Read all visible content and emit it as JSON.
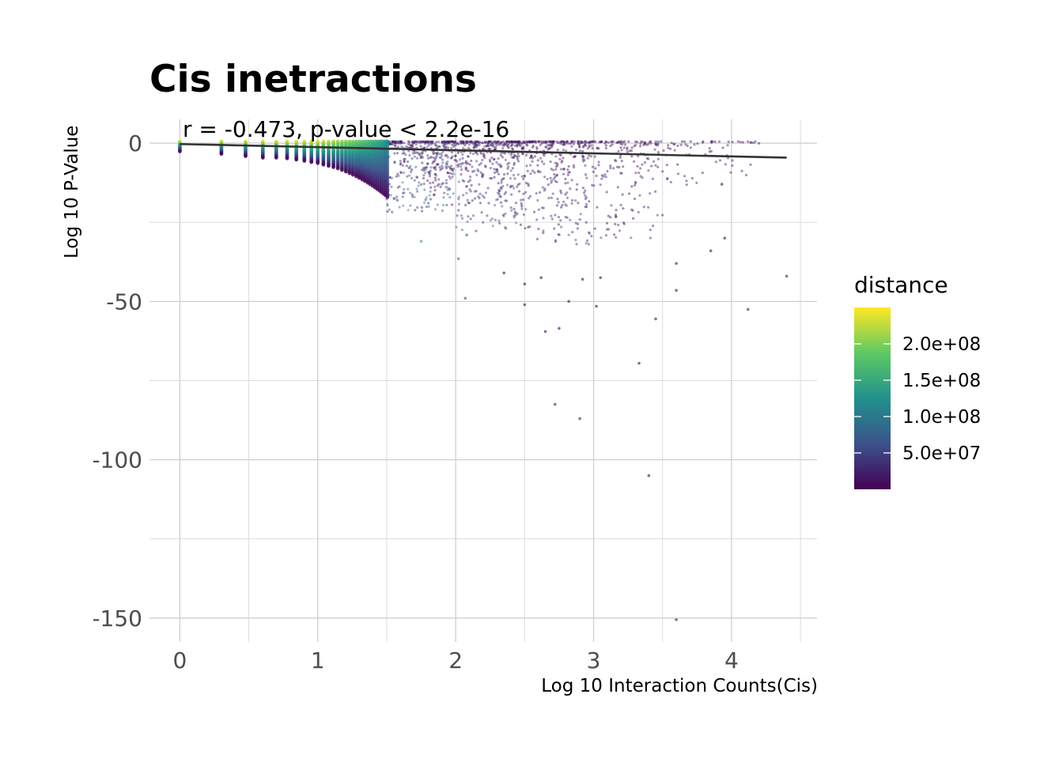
{
  "chart_data": {
    "type": "scatter",
    "title": "Cis inetractions",
    "annotation": "r = -0.473, p-value < 2.2e-16",
    "xlabel": "Log 10 Interaction Counts(Cis)",
    "ylabel": "Log 10 P-Value",
    "xlim": [
      -0.22,
      4.62
    ],
    "ylim": [
      -157.5,
      7.5
    ],
    "x_ticks": [
      0,
      1,
      2,
      3,
      4
    ],
    "x_tick_labels": [
      "0",
      "1",
      "2",
      "3",
      "4"
    ],
    "x_minor_ticks": [
      0.5,
      1.5,
      2.5,
      3.5,
      4.5
    ],
    "y_ticks": [
      0,
      -50,
      -100,
      -150
    ],
    "y_tick_labels": [
      "0",
      "-50",
      "-100",
      "-150"
    ],
    "y_minor_ticks": [
      -25,
      -75,
      -125
    ],
    "grid": true,
    "legend": {
      "title": "distance",
      "placement": "right",
      "range": [
        0,
        250000000
      ],
      "ticks": [
        50000000,
        100000000,
        150000000,
        200000000
      ],
      "tick_labels": [
        "5.0e+07",
        "1.0e+08",
        "1.5e+08",
        "2.0e+08"
      ],
      "colormap": [
        "#440154",
        "#3b528b",
        "#21918c",
        "#5ec962",
        "#fde725"
      ]
    },
    "fit_line": {
      "x": [
        0,
        4.4
      ],
      "y": [
        -0.3,
        -4.6
      ],
      "color": "#333333"
    },
    "outlier_points": [
      {
        "x": 3.6,
        "y": -150.5,
        "d": 5000000
      },
      {
        "x": 3.4,
        "y": -105,
        "d": 5000000
      },
      {
        "x": 2.9,
        "y": -87,
        "d": 5000000
      },
      {
        "x": 2.72,
        "y": -82.5,
        "d": 5000000
      },
      {
        "x": 3.33,
        "y": -69.5,
        "d": 5000000
      },
      {
        "x": 2.65,
        "y": -59.5,
        "d": 5000000
      },
      {
        "x": 2.75,
        "y": -58.5,
        "d": 5000000
      },
      {
        "x": 3.45,
        "y": -55.5,
        "d": 5000000
      },
      {
        "x": 4.12,
        "y": -52.5,
        "d": 5000000
      },
      {
        "x": 2.5,
        "y": -51,
        "d": 5000000
      },
      {
        "x": 3.02,
        "y": -51.5,
        "d": 5000000
      },
      {
        "x": 2.82,
        "y": -50,
        "d": 5000000
      },
      {
        "x": 2.07,
        "y": -49,
        "d": 60000000
      },
      {
        "x": 3.6,
        "y": -46.5,
        "d": 5000000
      },
      {
        "x": 2.5,
        "y": -44.5,
        "d": 5000000
      },
      {
        "x": 2.92,
        "y": -43,
        "d": 5000000
      },
      {
        "x": 4.4,
        "y": -42,
        "d": 5000000
      },
      {
        "x": 2.62,
        "y": -42.5,
        "d": 5000000
      },
      {
        "x": 3.05,
        "y": -42.5,
        "d": 5000000
      },
      {
        "x": 2.35,
        "y": -41,
        "d": 5000000
      },
      {
        "x": 3.6,
        "y": -38,
        "d": 5000000
      },
      {
        "x": 2.02,
        "y": -36.5,
        "d": 110000000
      },
      {
        "x": 3.85,
        "y": -34,
        "d": 5000000
      },
      {
        "x": 3.95,
        "y": -30,
        "d": 5000000
      },
      {
        "x": 1.75,
        "y": -31,
        "d": 140000000
      },
      {
        "x": 2.08,
        "y": -29,
        "d": 90000000
      },
      {
        "x": 3.93,
        "y": -13,
        "d": 5000000
      }
    ],
    "point_groups": [
      {
        "x": 0.0,
        "n": 10,
        "ymin": -2.6,
        "ymax": 0.5,
        "dmin": 5000000,
        "dmax": 240000000
      },
      {
        "x": 0.301,
        "n": 14,
        "ymin": -3.4,
        "ymax": 0.5,
        "dmin": 5000000,
        "dmax": 240000000
      },
      {
        "x": 0.477,
        "n": 16,
        "ymin": -4.1,
        "ymax": 0.5,
        "dmin": 5000000,
        "dmax": 240000000
      },
      {
        "x": 0.602,
        "n": 16,
        "ymin": -4.6,
        "ymax": 0.5,
        "dmin": 5000000,
        "dmax": 240000000
      },
      {
        "x": 0.699,
        "n": 16,
        "ymin": -4.6,
        "ymax": 0.5,
        "dmin": 5000000,
        "dmax": 240000000
      },
      {
        "x": 0.778,
        "n": 16,
        "ymin": -4.8,
        "ymax": 0.5,
        "dmin": 5000000,
        "dmax": 240000000
      },
      {
        "x": 0.845,
        "n": 16,
        "ymin": -5.2,
        "ymax": 0.5,
        "dmin": 5000000,
        "dmax": 240000000
      },
      {
        "x": 0.903,
        "n": 18,
        "ymin": -5.6,
        "ymax": 0.5,
        "dmin": 5000000,
        "dmax": 240000000
      },
      {
        "x": 0.954,
        "n": 18,
        "ymin": -6.0,
        "ymax": 0.5,
        "dmin": 5000000,
        "dmax": 240000000
      },
      {
        "x": 1.0,
        "n": 18,
        "ymin": -6.3,
        "ymax": 0.5,
        "dmin": 5000000,
        "dmax": 240000000
      },
      {
        "x": 1.041,
        "n": 18,
        "ymin": -6.8,
        "ymax": 0.5,
        "dmin": 5000000,
        "dmax": 230000000
      },
      {
        "x": 1.079,
        "n": 18,
        "ymin": -7.2,
        "ymax": 0.5,
        "dmin": 5000000,
        "dmax": 230000000
      },
      {
        "x": 1.114,
        "n": 20,
        "ymin": -7.6,
        "ymax": 0.5,
        "dmin": 5000000,
        "dmax": 220000000
      },
      {
        "x": 1.146,
        "n": 20,
        "ymin": -8.0,
        "ymax": 0.5,
        "dmin": 5000000,
        "dmax": 215000000
      },
      {
        "x": 1.176,
        "n": 20,
        "ymin": -8.5,
        "ymax": 0.5,
        "dmin": 5000000,
        "dmax": 210000000
      },
      {
        "x": 1.204,
        "n": 20,
        "ymin": -9.0,
        "ymax": 0.5,
        "dmin": 5000000,
        "dmax": 205000000
      },
      {
        "x": 1.23,
        "n": 20,
        "ymin": -9.5,
        "ymax": 0.5,
        "dmin": 5000000,
        "dmax": 200000000
      },
      {
        "x": 1.255,
        "n": 20,
        "ymin": -10.0,
        "ymax": 0.5,
        "dmin": 5000000,
        "dmax": 195000000
      },
      {
        "x": 1.279,
        "n": 20,
        "ymin": -10.5,
        "ymax": 0.5,
        "dmin": 5000000,
        "dmax": 190000000
      },
      {
        "x": 1.301,
        "n": 22,
        "ymin": -11.0,
        "ymax": 0.5,
        "dmin": 5000000,
        "dmax": 185000000
      },
      {
        "x": 1.322,
        "n": 22,
        "ymin": -11.5,
        "ymax": 0.5,
        "dmin": 5000000,
        "dmax": 180000000
      },
      {
        "x": 1.342,
        "n": 22,
        "ymin": -12.0,
        "ymax": 0.5,
        "dmin": 5000000,
        "dmax": 175000000
      },
      {
        "x": 1.362,
        "n": 22,
        "ymin": -12.5,
        "ymax": 0.5,
        "dmin": 5000000,
        "dmax": 170000000
      },
      {
        "x": 1.38,
        "n": 22,
        "ymin": -13.0,
        "ymax": 0.5,
        "dmin": 5000000,
        "dmax": 165000000
      },
      {
        "x": 1.398,
        "n": 22,
        "ymin": -13.5,
        "ymax": 0.5,
        "dmin": 5000000,
        "dmax": 160000000
      },
      {
        "x": 1.415,
        "n": 22,
        "ymin": -14.0,
        "ymax": 0.5,
        "dmin": 5000000,
        "dmax": 155000000
      },
      {
        "x": 1.431,
        "n": 22,
        "ymin": -14.5,
        "ymax": 0.5,
        "dmin": 5000000,
        "dmax": 150000000
      },
      {
        "x": 1.447,
        "n": 22,
        "ymin": -15.0,
        "ymax": 0.5,
        "dmin": 5000000,
        "dmax": 145000000
      },
      {
        "x": 1.462,
        "n": 22,
        "ymin": -15.5,
        "ymax": 0.5,
        "dmin": 5000000,
        "dmax": 140000000
      },
      {
        "x": 1.477,
        "n": 22,
        "ymin": -16.0,
        "ymax": 0.5,
        "dmin": 5000000,
        "dmax": 135000000
      },
      {
        "x": 1.491,
        "n": 22,
        "ymin": -16.5,
        "ymax": 0.5,
        "dmin": 5000000,
        "dmax": 130000000
      },
      {
        "x": 1.505,
        "n": 22,
        "ymin": -17.0,
        "ymax": 0.5,
        "dmin": 5000000,
        "dmax": 125000000
      }
    ],
    "cloud": [
      {
        "xmin": 1.5,
        "xmax": 2.0,
        "n": 420,
        "ymin": -22,
        "ymax": 0.5,
        "dmin": 5000000,
        "dmax": 130000000
      },
      {
        "xmin": 2.0,
        "xmax": 2.5,
        "n": 420,
        "ymin": -28,
        "ymax": 0.5,
        "dmin": 5000000,
        "dmax": 90000000
      },
      {
        "xmin": 2.5,
        "xmax": 3.0,
        "n": 320,
        "ymin": -32,
        "ymax": 0.5,
        "dmin": 5000000,
        "dmax": 60000000
      },
      {
        "xmin": 3.0,
        "xmax": 3.5,
        "n": 170,
        "ymin": -30,
        "ymax": 0.5,
        "dmin": 5000000,
        "dmax": 40000000
      },
      {
        "xmin": 3.5,
        "xmax": 4.2,
        "n": 70,
        "ymin": -14,
        "ymax": 0.5,
        "dmin": 5000000,
        "dmax": 25000000
      }
    ]
  }
}
